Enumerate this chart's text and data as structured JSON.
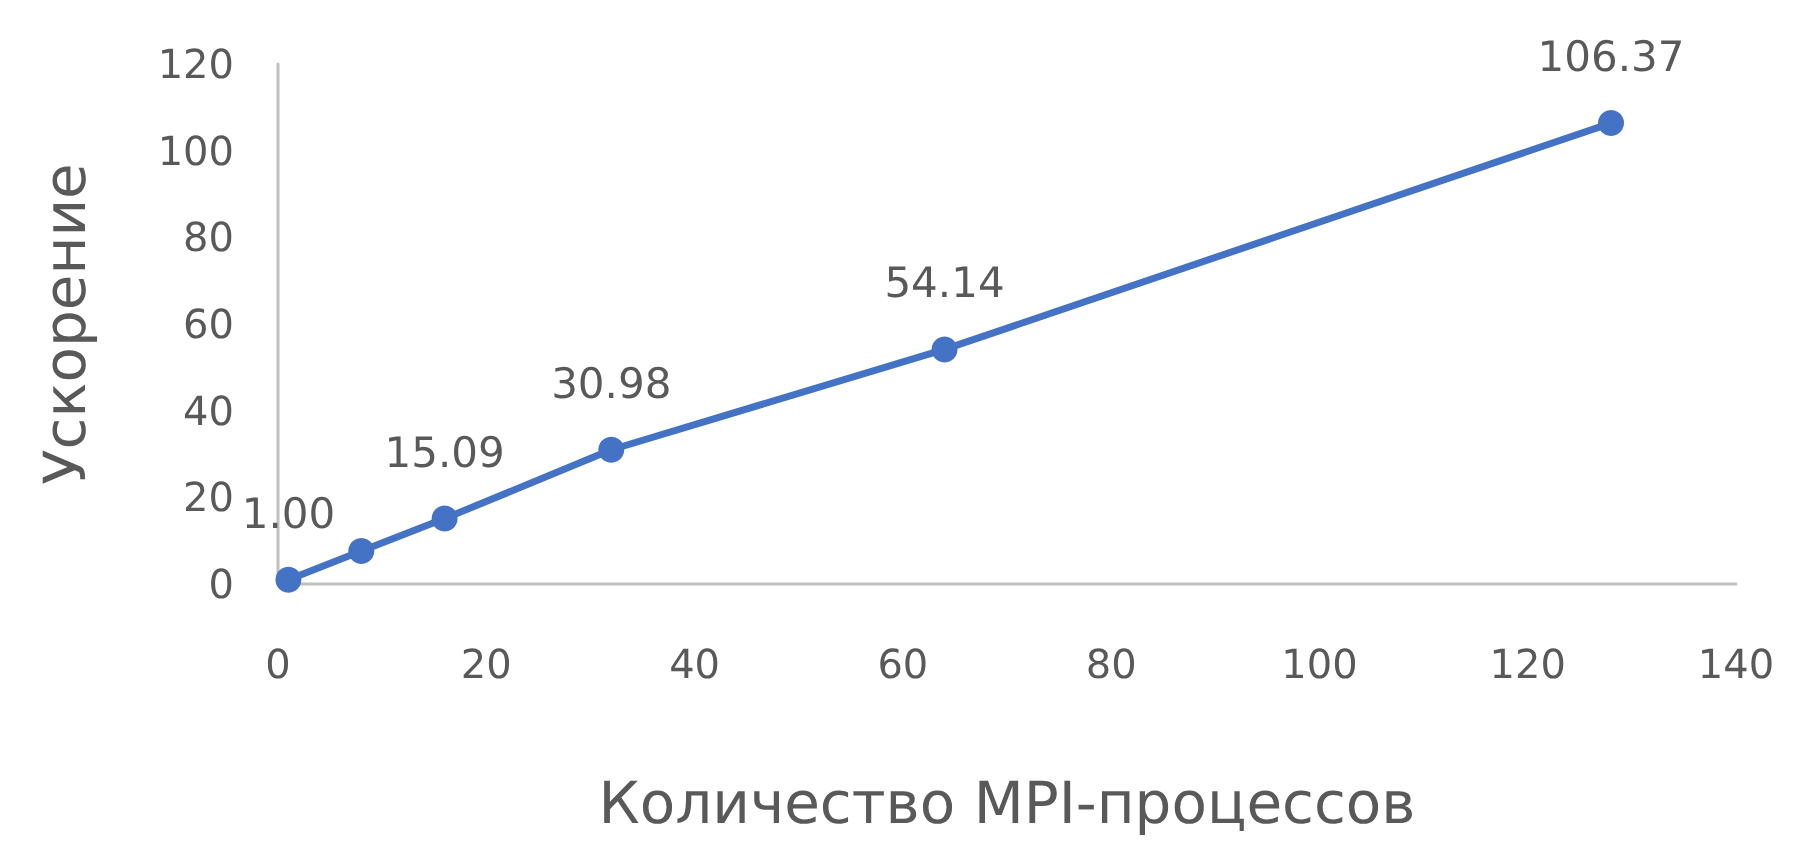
{
  "chart_data": {
    "type": "line",
    "xlabel": "Количество MPI-процессов",
    "ylabel": "Ускорение",
    "x": [
      1,
      8,
      16,
      32,
      64,
      128
    ],
    "series": [
      {
        "color": "#4472c4",
        "values": [
          1.0,
          7.6,
          15.09,
          30.98,
          54.14,
          106.37
        ],
        "value_labels": [
          "1.00",
          null,
          "15.09",
          "30.98",
          "54.14",
          "106.37"
        ]
      }
    ],
    "xlim": [
      0,
      140
    ],
    "xticks": [
      0,
      20,
      40,
      60,
      80,
      100,
      120,
      140
    ],
    "ylim": [
      0,
      120
    ],
    "yticks": [
      0,
      20,
      40,
      60,
      80,
      100,
      120
    ],
    "grid": false,
    "marker": "circle",
    "line_style": "solid"
  }
}
